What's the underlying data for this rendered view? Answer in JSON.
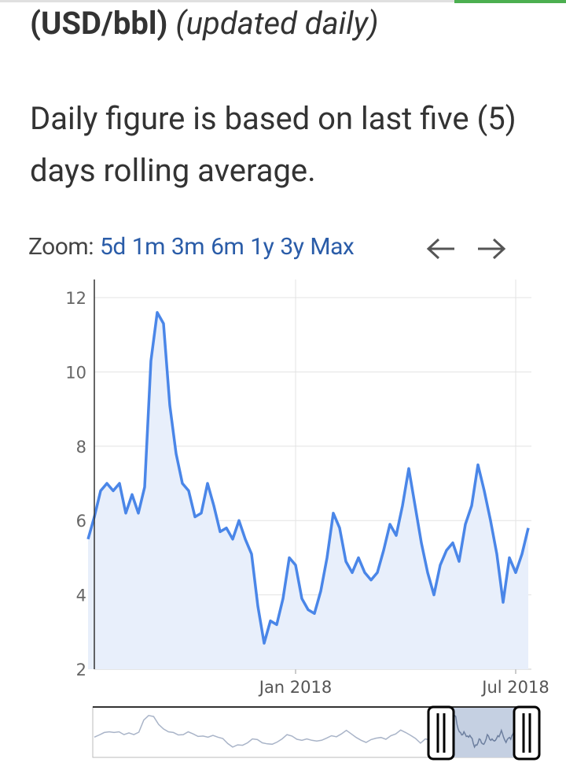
{
  "header": {
    "unit": "(USD/bbl)",
    "note": "(updated daily)"
  },
  "description": "Daily figure is based on last five (5) days rolling average.",
  "zoom": {
    "label": "Zoom:",
    "options": [
      "5d",
      "1m",
      "3m",
      "6m",
      "1y",
      "3y",
      "Max"
    ]
  },
  "chart_data": {
    "type": "line",
    "categories": [
      null,
      null,
      null,
      null,
      null,
      null,
      null,
      null,
      null,
      null,
      null,
      null,
      null,
      null,
      null,
      null,
      null,
      null,
      null,
      null,
      null,
      null,
      null,
      null,
      null,
      null,
      null,
      null,
      null,
      null,
      null,
      null,
      null,
      "Jan 2018",
      null,
      null,
      null,
      null,
      null,
      null,
      null,
      null,
      null,
      null,
      null,
      null,
      null,
      null,
      null,
      null,
      null,
      null,
      null,
      null,
      null,
      null,
      null,
      null,
      null,
      null,
      null,
      null,
      null,
      null,
      null,
      null,
      null,
      null,
      "Jul 2018",
      null,
      null
    ],
    "series": [
      {
        "color": "#4a86e8",
        "values": [
          5.5,
          6.1,
          6.8,
          7.0,
          6.8,
          7.0,
          6.2,
          6.7,
          6.2,
          6.9,
          10.3,
          11.6,
          11.3,
          9.1,
          7.8,
          7.0,
          6.8,
          6.1,
          6.2,
          7.0,
          6.4,
          5.7,
          5.8,
          5.5,
          6.0,
          5.5,
          5.1,
          3.7,
          2.7,
          3.3,
          3.2,
          3.9,
          5.0,
          4.8,
          3.9,
          3.6,
          3.5,
          4.1,
          5.0,
          6.2,
          5.8,
          4.9,
          4.6,
          5.0,
          4.6,
          4.4,
          4.6,
          5.2,
          5.9,
          5.6,
          6.4,
          7.4,
          6.4,
          5.4,
          4.6,
          4.0,
          4.8,
          5.2,
          5.4,
          4.9,
          5.9,
          6.4,
          7.5,
          6.8,
          6.0,
          5.1,
          3.8,
          5.0,
          4.6,
          5.1,
          5.8
        ]
      }
    ],
    "ylim": [
      2,
      12
    ],
    "yticks": [
      2,
      4,
      6,
      8,
      10,
      12
    ],
    "grid": true
  }
}
